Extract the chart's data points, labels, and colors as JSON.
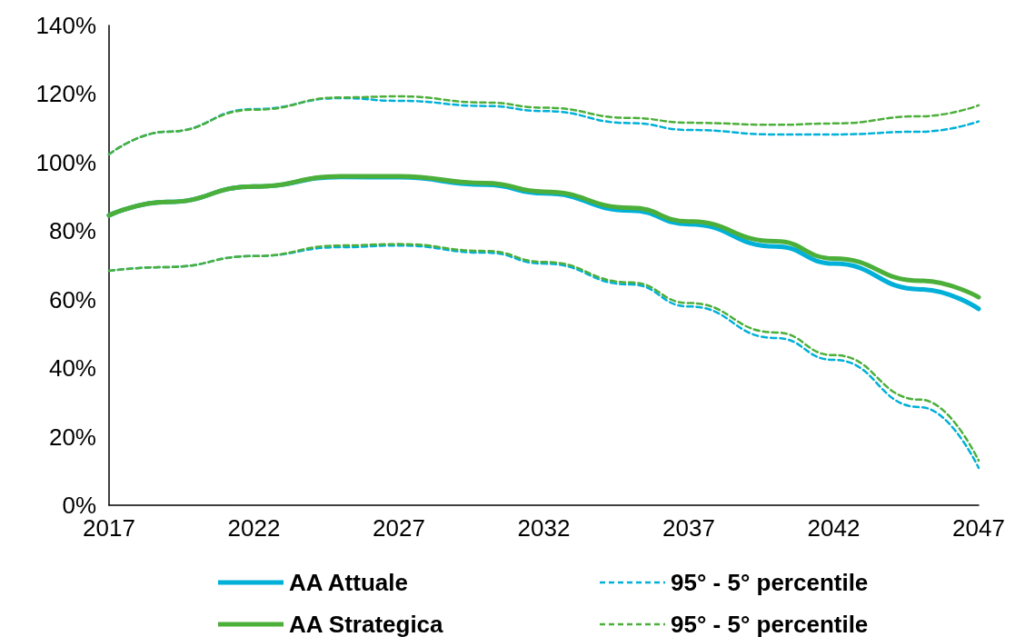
{
  "chart_data": {
    "type": "line",
    "x": [
      2017,
      2019,
      2022,
      2025,
      2027,
      2030,
      2032,
      2035,
      2037,
      2040,
      2042,
      2045,
      2047
    ],
    "xlim": [
      2017,
      2047
    ],
    "xticks": [
      2017,
      2022,
      2027,
      2032,
      2037,
      2042,
      2047
    ],
    "ylim": [
      0,
      140
    ],
    "yticks": [
      {
        "value": 0,
        "label": "0%"
      },
      {
        "value": 20,
        "label": "20%"
      },
      {
        "value": 40,
        "label": "40%"
      },
      {
        "value": 60,
        "label": "60%"
      },
      {
        "value": 80,
        "label": "80%"
      },
      {
        "value": 100,
        "label": "100%"
      },
      {
        "value": 120,
        "label": "120%"
      },
      {
        "value": 140,
        "label": "140%"
      }
    ],
    "grid": false,
    "legend": "bottom",
    "marker": "none",
    "series": [
      {
        "name": "AA Attuale",
        "color": "#00b0d8",
        "line_style": "solid",
        "values": [
          84.6,
          88.5,
          93,
          95.8,
          95.7,
          93.5,
          91,
          86,
          82,
          75.5,
          70.5,
          63,
          57.3
        ]
      },
      {
        "name": "AA Strategica",
        "color": "#4caf3a",
        "line_style": "solid",
        "values": [
          84.6,
          88.5,
          93,
          96,
          96,
          94,
          91.5,
          86.8,
          82.8,
          77,
          72,
          65.5,
          60.7
        ]
      },
      {
        "name": "95° - 5° percentile",
        "color": "#00b0d8",
        "line_style": "dashed",
        "values": [
          102.4,
          109,
          115.6,
          118.8,
          118,
          116.5,
          115,
          111.5,
          109.5,
          108.2,
          108.2,
          109,
          112
        ]
      },
      {
        "name": "95° - 5° percentile",
        "color": "#4caf3a",
        "line_style": "dashed",
        "values": [
          102.4,
          109,
          115.4,
          119,
          119.3,
          117.5,
          116,
          113,
          111.6,
          111,
          111.4,
          113.5,
          116.7
        ]
      },
      {
        "color": "#00b0d8",
        "line_style": "dashed",
        "values": [
          68.4,
          69.5,
          72.7,
          75.3,
          75.8,
          73.7,
          70.5,
          64.4,
          58,
          48.8,
          42.4,
          28.6,
          10.9
        ]
      },
      {
        "color": "#4caf3a",
        "line_style": "dashed",
        "values": [
          68.4,
          69.5,
          72.7,
          75.8,
          76.2,
          74.2,
          71,
          65,
          59,
          50.4,
          43.8,
          30.8,
          13
        ]
      }
    ]
  }
}
